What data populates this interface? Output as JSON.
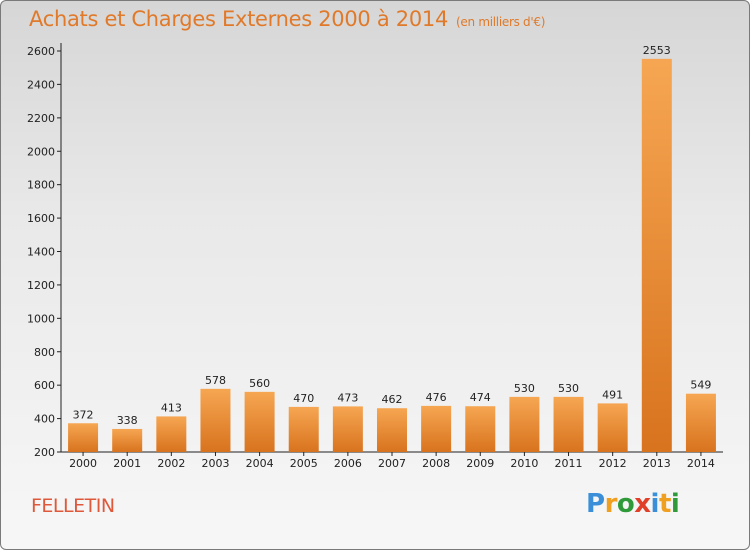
{
  "title": "Achats et Charges Externes 2000 à 2014",
  "unit": "(en milliers d'€)",
  "commune": "FELLETIN",
  "logo": {
    "letters": [
      "P",
      "r",
      "o",
      "x",
      "i",
      "t",
      "i"
    ],
    "colors": [
      "#3b8fd9",
      "#f0a020",
      "#2f9a3a",
      "#e0402a",
      "#3b8fd9",
      "#f0a020",
      "#2f9a3a"
    ]
  },
  "colors": {
    "bar_light": "#f6a652",
    "bar_dark": "#d8731e",
    "title": "#e07a2a",
    "commune": "#e0583a"
  },
  "chart_data": {
    "type": "bar",
    "title": "Achats et Charges Externes 2000 à 2014",
    "subtitle": "(en milliers d'€)",
    "categories": [
      "2000",
      "2001",
      "2002",
      "2003",
      "2004",
      "2005",
      "2006",
      "2007",
      "2008",
      "2009",
      "2010",
      "2011",
      "2012",
      "2013",
      "2014"
    ],
    "values": [
      372,
      338,
      413,
      578,
      560,
      470,
      473,
      462,
      476,
      474,
      530,
      530,
      491,
      2553,
      549
    ],
    "ylim": [
      200,
      2600
    ],
    "yticks": [
      200,
      400,
      600,
      800,
      1000,
      1200,
      1400,
      1600,
      1800,
      2000,
      2200,
      2400,
      2600
    ],
    "grid": false,
    "legend": "none"
  }
}
